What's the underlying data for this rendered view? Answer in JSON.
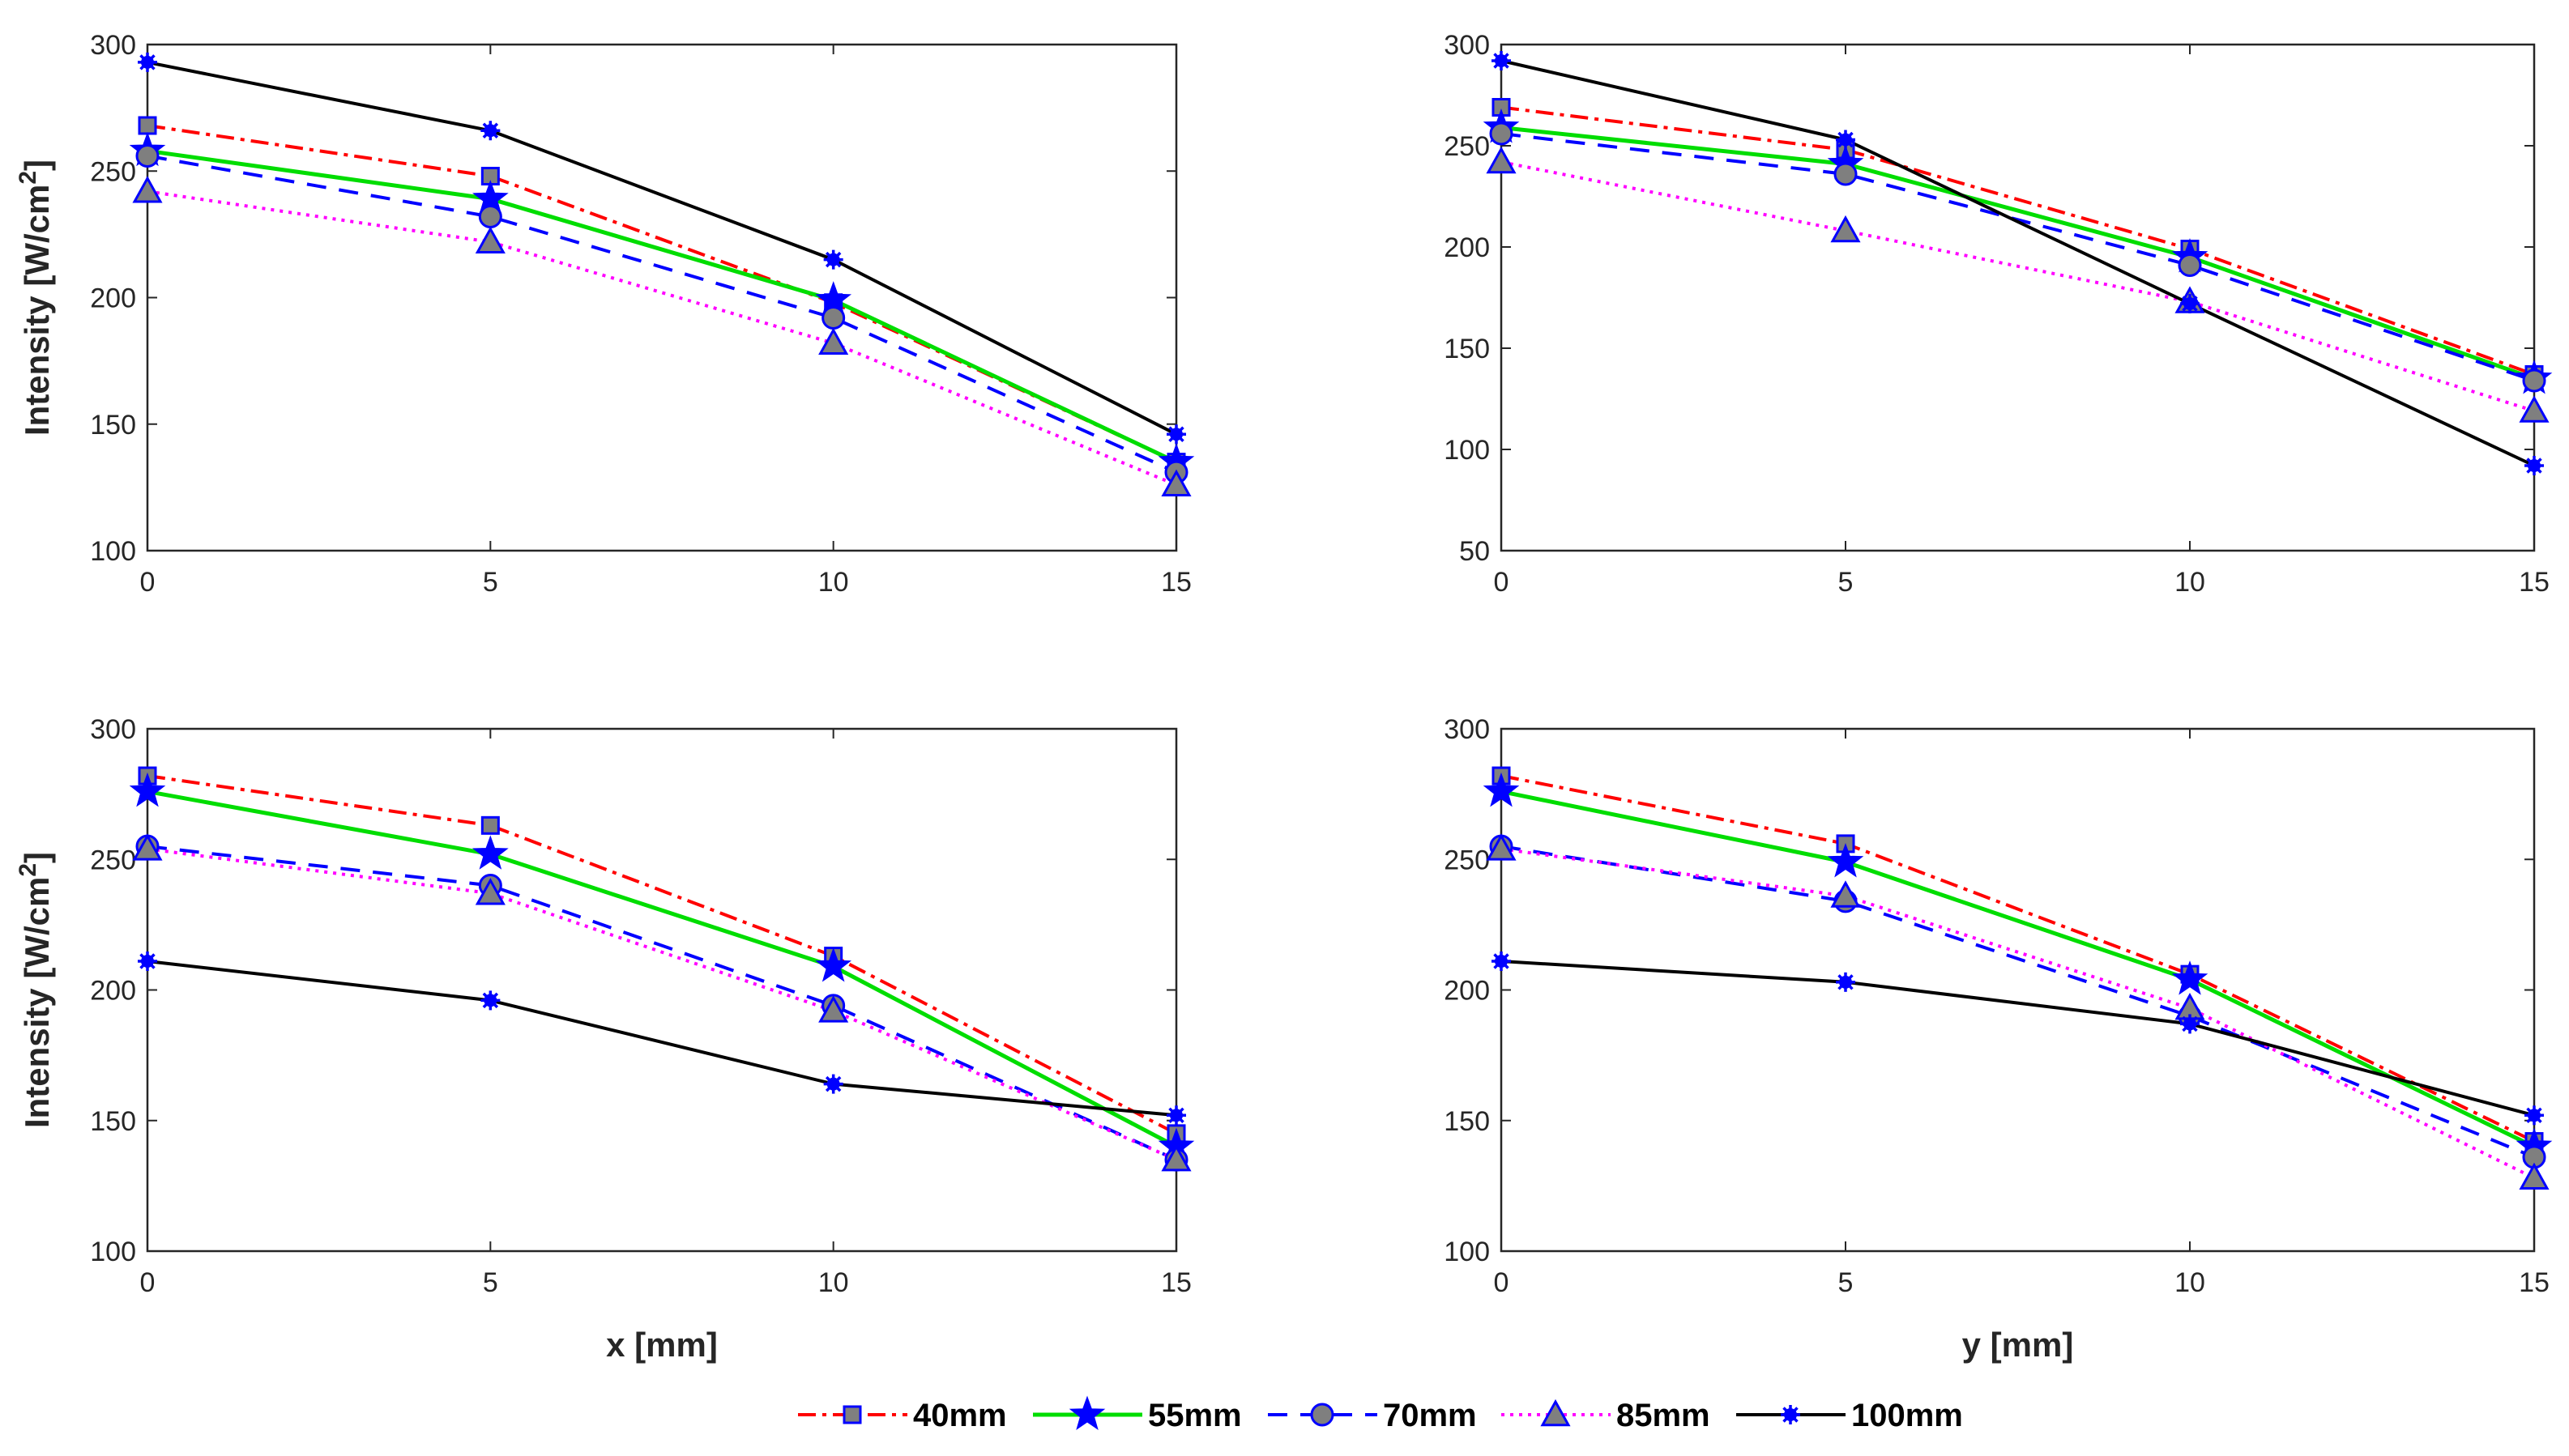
{
  "colors": {
    "s40": "#ff0000",
    "s55": "#00dd00",
    "s70": "#0000ff",
    "s85": "#ff00ff",
    "s100": "#000000",
    "marker_fill": "#7f7f7f",
    "marker_edge": "#0000ff"
  },
  "legend": [
    {
      "name": "40mm",
      "color_key": "s40",
      "marker": "square"
    },
    {
      "name": "55mm",
      "color_key": "s55",
      "marker": "star"
    },
    {
      "name": "70mm",
      "color_key": "s70",
      "marker": "circle"
    },
    {
      "name": "85mm",
      "color_key": "s85",
      "marker": "triangle"
    },
    {
      "name": "100mm",
      "color_key": "s100",
      "marker": "asterisk"
    }
  ],
  "chart_data": [
    {
      "type": "line",
      "title": "",
      "xlabel": "",
      "ylabel": "Intensity [W/cm²]",
      "x": [
        0,
        5,
        10,
        15
      ],
      "xticks": [
        "0",
        "5",
        "10",
        "15"
      ],
      "ylim": [
        100,
        300
      ],
      "yticks": [
        "100",
        "150",
        "200",
        "250",
        "300"
      ],
      "series": [
        {
          "name": "40mm",
          "values": [
            268,
            248,
            198,
            135
          ]
        },
        {
          "name": "55mm",
          "values": [
            258,
            239,
            199,
            135
          ]
        },
        {
          "name": "70mm",
          "values": [
            256,
            232,
            192,
            131
          ]
        },
        {
          "name": "85mm",
          "values": [
            242,
            222,
            182,
            126
          ]
        },
        {
          "name": "100mm",
          "values": [
            293,
            266,
            215,
            146
          ]
        }
      ]
    },
    {
      "type": "line",
      "title": "",
      "xlabel": "",
      "ylabel": "",
      "x": [
        0,
        5,
        10,
        15
      ],
      "xticks": [
        "0",
        "5",
        "10",
        "15"
      ],
      "ylim": [
        50,
        300
      ],
      "yticks": [
        "50",
        "100",
        "150",
        "200",
        "250",
        "300"
      ],
      "series": [
        {
          "name": "40mm",
          "values": [
            269,
            248,
            199,
            137
          ]
        },
        {
          "name": "55mm",
          "values": [
            259,
            241,
            195,
            135
          ]
        },
        {
          "name": "70mm",
          "values": [
            256,
            236,
            191,
            134
          ]
        },
        {
          "name": "85mm",
          "values": [
            242,
            208,
            173,
            119
          ]
        },
        {
          "name": "100mm",
          "values": [
            292,
            253,
            172,
            92
          ]
        }
      ]
    },
    {
      "type": "line",
      "title": "",
      "xlabel": "x [mm]",
      "ylabel": "Intensity [W/cm²]",
      "x": [
        0,
        5,
        10,
        15
      ],
      "xticks": [
        "0",
        "5",
        "10",
        "15"
      ],
      "ylim": [
        100,
        300
      ],
      "yticks": [
        "100",
        "150",
        "200",
        "250",
        "300"
      ],
      "series": [
        {
          "name": "40mm",
          "values": [
            282,
            263,
            213,
            145
          ]
        },
        {
          "name": "55mm",
          "values": [
            276,
            252,
            209,
            140
          ]
        },
        {
          "name": "70mm",
          "values": [
            255,
            240,
            194,
            135
          ]
        },
        {
          "name": "85mm",
          "values": [
            254,
            237,
            192,
            135
          ]
        },
        {
          "name": "100mm",
          "values": [
            211,
            196,
            164,
            152
          ]
        }
      ]
    },
    {
      "type": "line",
      "title": "",
      "xlabel": "y [mm]",
      "ylabel": "",
      "x": [
        0,
        5,
        10,
        15
      ],
      "xticks": [
        "0",
        "5",
        "10",
        "15"
      ],
      "ylim": [
        100,
        300
      ],
      "yticks": [
        "100",
        "150",
        "200",
        "250",
        "300"
      ],
      "series": [
        {
          "name": "40mm",
          "values": [
            282,
            256,
            206,
            142
          ]
        },
        {
          "name": "55mm",
          "values": [
            276,
            249,
            204,
            140
          ]
        },
        {
          "name": "70mm",
          "values": [
            255,
            234,
            190,
            136
          ]
        },
        {
          "name": "85mm",
          "values": [
            254,
            236,
            193,
            128
          ]
        },
        {
          "name": "100mm",
          "values": [
            211,
            203,
            187,
            152
          ]
        }
      ]
    }
  ]
}
